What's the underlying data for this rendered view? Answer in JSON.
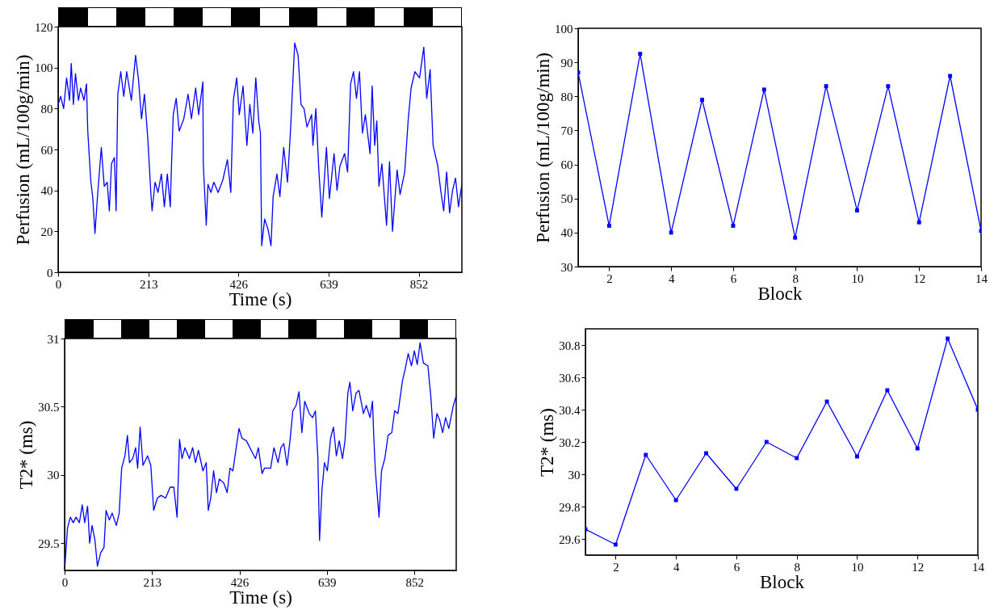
{
  "chart_data": [
    {
      "type": "line",
      "xlabel": "Time (s)",
      "ylabel": "Perfusion (mL/100g/min)",
      "xlim": [
        0,
        954
      ],
      "xticks": [
        0,
        213,
        426,
        639,
        852
      ],
      "ylim": [
        0,
        120
      ],
      "yticks": [
        0,
        20,
        40,
        60,
        80,
        100,
        120
      ],
      "x": [
        0,
        6,
        13,
        20,
        27,
        31,
        36,
        41,
        48,
        53,
        61,
        67,
        70,
        77,
        82,
        87,
        93,
        102,
        109,
        116,
        121,
        126,
        133,
        137,
        141,
        148,
        155,
        162,
        173,
        183,
        190,
        197,
        204,
        212,
        219,
        222,
        229,
        236,
        244,
        251,
        258,
        265,
        268,
        272,
        279,
        286,
        297,
        307,
        315,
        325,
        332,
        342,
        343,
        350,
        354,
        361,
        368,
        378,
        389,
        400,
        408,
        414,
        422,
        428,
        437,
        446,
        453,
        460,
        467,
        474,
        478,
        481,
        488,
        496,
        503,
        508,
        517,
        524,
        533,
        542,
        549,
        559,
        567,
        574,
        581,
        588,
        599,
        602,
        609,
        616,
        623,
        634,
        641,
        652,
        659,
        666,
        677,
        684,
        691,
        698,
        705,
        712,
        719,
        726,
        737,
        742,
        748,
        753,
        758,
        765,
        776,
        783,
        790,
        801,
        808,
        819,
        827,
        834,
        843,
        854,
        864,
        871,
        879,
        886,
        897,
        904,
        911,
        918,
        925,
        932,
        939,
        946,
        954
      ],
      "series": [
        {
          "color": "#0000ff",
          "values": [
            82,
            86,
            80,
            95,
            84,
            102,
            82,
            97,
            84,
            90,
            84,
            92,
            69,
            45,
            36,
            19,
            37,
            61,
            42,
            44,
            30,
            53,
            56,
            30,
            87,
            98,
            86,
            98,
            84,
            106,
            94,
            75,
            87,
            65,
            39,
            30,
            44,
            39,
            48,
            32,
            48,
            32,
            53,
            77,
            85,
            69,
            75,
            87,
            75,
            90,
            77,
            93,
            53,
            23,
            43,
            39,
            44,
            39,
            45,
            55,
            39,
            84,
            95,
            77,
            91,
            62,
            82,
            68,
            95,
            74,
            68,
            13,
            26,
            21,
            13,
            37,
            48,
            37,
            61,
            44,
            69,
            112,
            106,
            82,
            80,
            71,
            77,
            62,
            80,
            50,
            27,
            61,
            36,
            58,
            40,
            52,
            58,
            49,
            92,
            98,
            85,
            98,
            68,
            77,
            58,
            91,
            62,
            74,
            42,
            53,
            23,
            54,
            20,
            50,
            38,
            49,
            74,
            90,
            98,
            95,
            110,
            85,
            99,
            62,
            52,
            40,
            30,
            49,
            29,
            40,
            46,
            32,
            43
          ]
        }
      ]
    },
    {
      "type": "line",
      "xlabel": "Block",
      "ylabel": "Perfusion (mL/100g/min)",
      "xlim": [
        1,
        14
      ],
      "xticks": [
        2,
        4,
        6,
        8,
        10,
        12,
        14
      ],
      "ylim": [
        30,
        100
      ],
      "yticks": [
        30,
        40,
        50,
        60,
        70,
        80,
        90,
        100
      ],
      "marker": "square",
      "x": [
        1,
        2,
        3,
        4,
        5,
        6,
        7,
        8,
        9,
        10,
        11,
        12,
        13,
        14
      ],
      "series": [
        {
          "color": "#0000ff",
          "values": [
            87,
            42,
            92.5,
            40,
            79,
            42,
            82,
            38.5,
            83,
            46.5,
            83,
            43,
            86,
            40.5
          ]
        }
      ]
    },
    {
      "type": "line",
      "xlabel": "Time (s)",
      "ylabel": "T2* (ms)",
      "xlim": [
        0,
        954
      ],
      "xticks": [
        0,
        213,
        426,
        639,
        852
      ],
      "ylim": [
        29.3,
        31
      ],
      "yticks": [
        29.5,
        30,
        30.5,
        31
      ],
      "x": [
        1,
        7,
        14,
        21,
        28,
        36,
        43,
        49,
        56,
        61,
        67,
        74,
        80,
        88,
        96,
        101,
        109,
        116,
        126,
        133,
        139,
        147,
        153,
        158,
        166,
        173,
        178,
        184,
        191,
        202,
        210,
        217,
        226,
        235,
        246,
        257,
        266,
        274,
        280,
        286,
        293,
        304,
        312,
        319,
        326,
        337,
        345,
        350,
        356,
        363,
        370,
        377,
        388,
        396,
        403,
        410,
        418,
        425,
        432,
        443,
        458,
        465,
        472,
        481,
        487,
        502,
        510,
        520,
        527,
        534,
        542,
        549,
        556,
        564,
        571,
        578,
        585,
        596,
        604,
        611,
        617,
        621,
        627,
        633,
        640,
        648,
        655,
        662,
        669,
        677,
        683,
        690,
        695,
        702,
        710,
        717,
        728,
        735,
        744,
        750,
        753,
        757,
        766,
        772,
        780,
        788,
        797,
        804,
        812,
        823,
        830,
        837,
        845,
        852,
        859,
        866,
        874,
        885,
        892,
        899,
        907,
        914,
        921,
        928,
        936,
        947,
        954
      ],
      "series": [
        {
          "color": "#0000ff",
          "values": [
            29.34,
            29.61,
            29.69,
            29.65,
            29.69,
            29.65,
            29.78,
            29.65,
            29.77,
            29.5,
            29.63,
            29.52,
            29.33,
            29.43,
            29.47,
            29.74,
            29.67,
            29.72,
            29.63,
            29.72,
            30.05,
            30.14,
            30.29,
            30.09,
            30.12,
            30.2,
            30.05,
            30.35,
            30.07,
            30.14,
            30.07,
            29.74,
            29.83,
            29.85,
            29.83,
            29.91,
            29.91,
            29.69,
            30.26,
            30.12,
            30.2,
            30.12,
            30.2,
            30.09,
            30.18,
            30.03,
            30.09,
            29.74,
            29.83,
            30.03,
            29.87,
            29.97,
            29.94,
            29.87,
            30.05,
            30.03,
            30.2,
            30.34,
            30.27,
            30.25,
            30.16,
            30.12,
            30.2,
            30.01,
            30.05,
            30.05,
            30.2,
            30.09,
            30.2,
            30.23,
            30.07,
            30.25,
            30.47,
            30.51,
            30.61,
            30.31,
            30.54,
            30.45,
            30.42,
            30.47,
            30.12,
            29.52,
            29.89,
            30.09,
            30.03,
            30.27,
            30.35,
            30.14,
            30.25,
            30.12,
            30.25,
            30.6,
            30.68,
            30.47,
            30.6,
            30.62,
            30.45,
            30.51,
            30.42,
            30.54,
            30.29,
            30.03,
            29.69,
            30.03,
            30.12,
            30.29,
            30.31,
            30.47,
            30.45,
            30.69,
            30.78,
            30.89,
            30.8,
            30.91,
            30.81,
            30.97,
            30.82,
            30.8,
            30.58,
            30.27,
            30.45,
            30.4,
            30.31,
            30.42,
            30.34,
            30.51,
            30.58
          ]
        }
      ]
    },
    {
      "type": "line",
      "xlabel": "Block",
      "ylabel": "T2* (ms)",
      "xlim": [
        1,
        14
      ],
      "xticks": [
        2,
        4,
        6,
        8,
        10,
        12,
        14
      ],
      "ylim": [
        29.5,
        30.9
      ],
      "yticks": [
        29.6,
        29.8,
        30,
        30.2,
        30.4,
        30.6,
        30.8
      ],
      "marker": "square",
      "x": [
        1,
        2,
        3,
        4,
        5,
        6,
        7,
        8,
        9,
        10,
        11,
        12,
        13,
        14
      ],
      "series": [
        {
          "color": "#0000ff",
          "values": [
            29.66,
            29.565,
            30.12,
            29.84,
            30.13,
            29.91,
            30.2,
            30.1,
            30.45,
            30.11,
            30.52,
            30.16,
            30.84,
            30.4
          ]
        }
      ]
    }
  ]
}
